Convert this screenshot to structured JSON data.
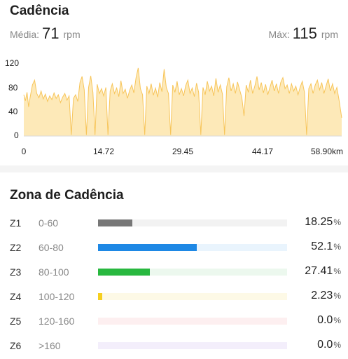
{
  "cadence": {
    "title": "Cadência",
    "avg_label": "Média:",
    "avg_value": "71",
    "avg_unit": "rpm",
    "max_label": "Máx:",
    "max_value": "115",
    "max_unit": "rpm"
  },
  "chart_data": {
    "type": "area",
    "y_ticks": [
      "120",
      "80",
      "40",
      "0"
    ],
    "x_ticks": [
      "0",
      "14.72",
      "29.45",
      "44.17",
      "58.90km"
    ],
    "x_range_km": [
      0,
      58.9
    ],
    "ylim": [
      0,
      120
    ],
    "color": "#f7c55a",
    "fill_color": "#fde9b8",
    "samples": [
      {
        "x": 0.0,
        "y": 68
      },
      {
        "x": 0.3,
        "y": 58
      },
      {
        "x": 0.6,
        "y": 72
      },
      {
        "x": 0.9,
        "y": 48
      },
      {
        "x": 1.2,
        "y": 65
      },
      {
        "x": 1.6,
        "y": 84
      },
      {
        "x": 2.0,
        "y": 92
      },
      {
        "x": 2.4,
        "y": 70
      },
      {
        "x": 2.8,
        "y": 63
      },
      {
        "x": 3.2,
        "y": 74
      },
      {
        "x": 3.6,
        "y": 61
      },
      {
        "x": 4.0,
        "y": 69
      },
      {
        "x": 4.4,
        "y": 57
      },
      {
        "x": 4.8,
        "y": 66
      },
      {
        "x": 5.2,
        "y": 60
      },
      {
        "x": 5.6,
        "y": 71
      },
      {
        "x": 6.0,
        "y": 62
      },
      {
        "x": 6.4,
        "y": 68
      },
      {
        "x": 6.8,
        "y": 55
      },
      {
        "x": 7.2,
        "y": 64
      },
      {
        "x": 7.6,
        "y": 70
      },
      {
        "x": 8.0,
        "y": 59
      },
      {
        "x": 8.4,
        "y": 66
      },
      {
        "x": 8.8,
        "y": 2
      },
      {
        "x": 9.2,
        "y": 62
      },
      {
        "x": 9.6,
        "y": 68
      },
      {
        "x": 10.0,
        "y": 57
      },
      {
        "x": 10.4,
        "y": 88
      },
      {
        "x": 10.8,
        "y": 98
      },
      {
        "x": 11.2,
        "y": 76
      },
      {
        "x": 11.6,
        "y": 2
      },
      {
        "x": 12.0,
        "y": 80
      },
      {
        "x": 12.4,
        "y": 99
      },
      {
        "x": 12.8,
        "y": 72
      },
      {
        "x": 13.2,
        "y": 2
      },
      {
        "x": 13.6,
        "y": 85
      },
      {
        "x": 14.0,
        "y": 70
      },
      {
        "x": 14.4,
        "y": 78
      },
      {
        "x": 14.8,
        "y": 66
      },
      {
        "x": 15.2,
        "y": 80
      },
      {
        "x": 15.6,
        "y": 2
      },
      {
        "x": 16.0,
        "y": 74
      },
      {
        "x": 16.4,
        "y": 86
      },
      {
        "x": 16.8,
        "y": 70
      },
      {
        "x": 17.2,
        "y": 79
      },
      {
        "x": 17.6,
        "y": 65
      },
      {
        "x": 18.0,
        "y": 91
      },
      {
        "x": 18.4,
        "y": 70
      },
      {
        "x": 18.8,
        "y": 77
      },
      {
        "x": 19.2,
        "y": 62
      },
      {
        "x": 19.6,
        "y": 75
      },
      {
        "x": 20.0,
        "y": 84
      },
      {
        "x": 20.4,
        "y": 71
      },
      {
        "x": 20.8,
        "y": 96
      },
      {
        "x": 21.2,
        "y": 112
      },
      {
        "x": 21.6,
        "y": 78
      },
      {
        "x": 22.0,
        "y": 68
      },
      {
        "x": 22.4,
        "y": 2
      },
      {
        "x": 22.8,
        "y": 82
      },
      {
        "x": 23.2,
        "y": 70
      },
      {
        "x": 23.6,
        "y": 86
      },
      {
        "x": 24.0,
        "y": 67
      },
      {
        "x": 24.4,
        "y": 79
      },
      {
        "x": 24.8,
        "y": 64
      },
      {
        "x": 25.2,
        "y": 88
      },
      {
        "x": 25.6,
        "y": 73
      },
      {
        "x": 26.0,
        "y": 110
      },
      {
        "x": 26.4,
        "y": 80
      },
      {
        "x": 26.8,
        "y": 70
      },
      {
        "x": 27.2,
        "y": 2
      },
      {
        "x": 27.6,
        "y": 84
      },
      {
        "x": 28.0,
        "y": 72
      },
      {
        "x": 28.4,
        "y": 90
      },
      {
        "x": 28.8,
        "y": 68
      },
      {
        "x": 29.2,
        "y": 78
      },
      {
        "x": 29.6,
        "y": 66
      },
      {
        "x": 30.0,
        "y": 83
      },
      {
        "x": 30.4,
        "y": 92
      },
      {
        "x": 30.8,
        "y": 70
      },
      {
        "x": 31.2,
        "y": 79
      },
      {
        "x": 31.6,
        "y": 65
      },
      {
        "x": 32.0,
        "y": 87
      },
      {
        "x": 32.4,
        "y": 72
      },
      {
        "x": 32.8,
        "y": 2
      },
      {
        "x": 33.2,
        "y": 80
      },
      {
        "x": 33.6,
        "y": 68
      },
      {
        "x": 34.0,
        "y": 90
      },
      {
        "x": 34.4,
        "y": 74
      },
      {
        "x": 34.8,
        "y": 82
      },
      {
        "x": 35.2,
        "y": 66
      },
      {
        "x": 35.6,
        "y": 95
      },
      {
        "x": 36.0,
        "y": 72
      },
      {
        "x": 36.4,
        "y": 84
      },
      {
        "x": 36.8,
        "y": 69
      },
      {
        "x": 37.2,
        "y": 2
      },
      {
        "x": 37.6,
        "y": 81
      },
      {
        "x": 38.0,
        "y": 96
      },
      {
        "x": 38.4,
        "y": 74
      },
      {
        "x": 38.8,
        "y": 86
      },
      {
        "x": 39.2,
        "y": 70
      },
      {
        "x": 39.6,
        "y": 89
      },
      {
        "x": 40.0,
        "y": 76
      },
      {
        "x": 40.4,
        "y": 63
      },
      {
        "x": 40.8,
        "y": 33
      },
      {
        "x": 41.2,
        "y": 84
      },
      {
        "x": 41.6,
        "y": 72
      },
      {
        "x": 42.0,
        "y": 92
      },
      {
        "x": 42.4,
        "y": 70
      },
      {
        "x": 42.8,
        "y": 82
      },
      {
        "x": 43.2,
        "y": 98
      },
      {
        "x": 43.6,
        "y": 76
      },
      {
        "x": 44.0,
        "y": 88
      },
      {
        "x": 44.4,
        "y": 71
      },
      {
        "x": 44.8,
        "y": 85
      },
      {
        "x": 45.2,
        "y": 68
      },
      {
        "x": 45.6,
        "y": 80
      },
      {
        "x": 46.0,
        "y": 92
      },
      {
        "x": 46.4,
        "y": 74
      },
      {
        "x": 46.8,
        "y": 86
      },
      {
        "x": 47.2,
        "y": 70
      },
      {
        "x": 47.6,
        "y": 88
      },
      {
        "x": 48.0,
        "y": 96
      },
      {
        "x": 48.4,
        "y": 78
      },
      {
        "x": 48.8,
        "y": 84
      },
      {
        "x": 49.2,
        "y": 70
      },
      {
        "x": 49.6,
        "y": 86
      },
      {
        "x": 50.0,
        "y": 74
      },
      {
        "x": 50.4,
        "y": 82
      },
      {
        "x": 50.8,
        "y": 68
      },
      {
        "x": 51.2,
        "y": 80
      },
      {
        "x": 51.6,
        "y": 90
      },
      {
        "x": 52.0,
        "y": 72
      },
      {
        "x": 52.4,
        "y": 2
      },
      {
        "x": 52.8,
        "y": 78
      },
      {
        "x": 53.2,
        "y": 86
      },
      {
        "x": 53.6,
        "y": 70
      },
      {
        "x": 54.0,
        "y": 84
      },
      {
        "x": 54.4,
        "y": 92
      },
      {
        "x": 54.8,
        "y": 76
      },
      {
        "x": 55.2,
        "y": 88
      },
      {
        "x": 55.6,
        "y": 70
      },
      {
        "x": 56.0,
        "y": 82
      },
      {
        "x": 56.4,
        "y": 94
      },
      {
        "x": 56.8,
        "y": 74
      },
      {
        "x": 57.2,
        "y": 86
      },
      {
        "x": 57.6,
        "y": 70
      },
      {
        "x": 58.0,
        "y": 80
      },
      {
        "x": 58.4,
        "y": 60
      },
      {
        "x": 58.9,
        "y": 30
      }
    ]
  },
  "zones": {
    "title": "Zona de Cadência",
    "unit": "%",
    "items": [
      {
        "name": "Z1",
        "range": "0-60",
        "pct": "18.25",
        "fraction": 0.1825,
        "color": "#777777",
        "track": "#f2f2f2"
      },
      {
        "name": "Z2",
        "range": "60-80",
        "pct": "52.1",
        "fraction": 0.521,
        "color": "#1e88e5",
        "track": "#e9f4fd"
      },
      {
        "name": "Z3",
        "range": "80-100",
        "pct": "27.41",
        "fraction": 0.2741,
        "color": "#28b83f",
        "track": "#ecf8ee"
      },
      {
        "name": "Z4",
        "range": "100-120",
        "pct": "2.23",
        "fraction": 0.0223,
        "color": "#f6cf1f",
        "track": "#fdf9e6"
      },
      {
        "name": "Z5",
        "range": "120-160",
        "pct": "0.0",
        "fraction": 0.0,
        "color": "#ef5350",
        "track": "#fdeff0"
      },
      {
        "name": "Z6",
        "range": ">160",
        "pct": "0.0",
        "fraction": 0.0,
        "color": "#8e6fd8",
        "track": "#f3eefb"
      }
    ]
  }
}
